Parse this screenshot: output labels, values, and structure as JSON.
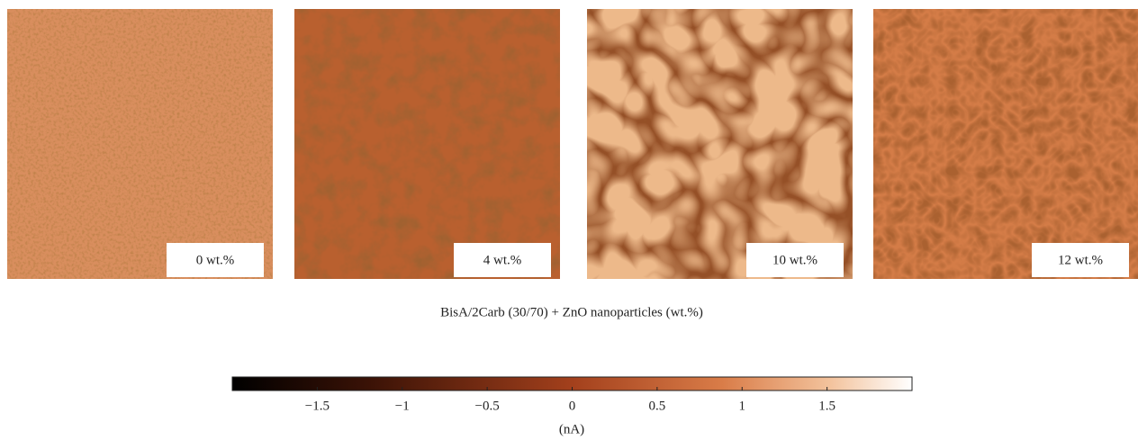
{
  "panels": [
    {
      "label": "0 wt.%"
    },
    {
      "label": "4 wt.%"
    },
    {
      "label": "10 wt.%"
    },
    {
      "label": "12 wt.%"
    }
  ],
  "caption": "BisA/2Carb (30/70) + ZnO nanoparticles (wt.%)",
  "colorbar": {
    "lim": [
      -2,
      2
    ],
    "ticks": [
      {
        "value": -1.5,
        "label": "−1.5"
      },
      {
        "value": -1,
        "label": "−1"
      },
      {
        "value": -0.5,
        "label": "−0.5"
      },
      0,
      0.5,
      1,
      1.5
    ],
    "unit": "(nA)"
  }
}
